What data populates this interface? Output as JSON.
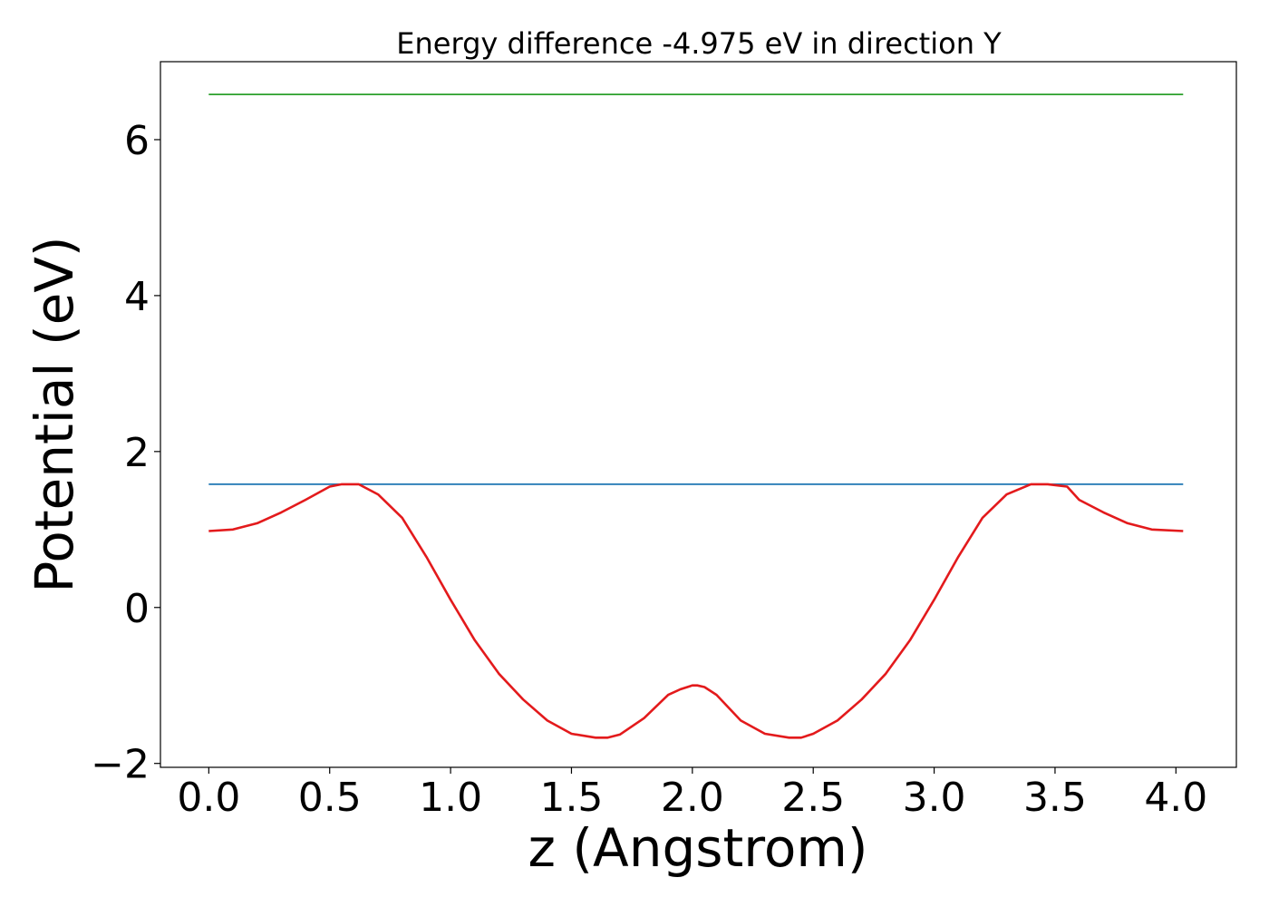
{
  "chart_data": {
    "type": "line",
    "title": "Energy difference -4.975 eV in direction Y",
    "xlabel": "z (Angstrom)",
    "ylabel": "Potential (eV)",
    "xlim": [
      -0.2,
      4.25
    ],
    "ylim": [
      -2.05,
      7.0
    ],
    "grid": false,
    "xticks": [
      0.0,
      0.5,
      1.0,
      1.5,
      2.0,
      2.5,
      3.0,
      3.5,
      4.0
    ],
    "xtick_labels": [
      "0.0",
      "0.5",
      "1.0",
      "1.5",
      "2.0",
      "2.5",
      "3.0",
      "3.5",
      "4.0"
    ],
    "yticks": [
      -2,
      0,
      2,
      4,
      6
    ],
    "ytick_labels": [
      "−2",
      "0",
      "2",
      "4",
      "6"
    ],
    "series": [
      {
        "color": "#2ca02c",
        "x": [
          0.0,
          4.03
        ],
        "y": [
          6.58,
          6.58
        ]
      },
      {
        "color": "#1f77b4",
        "x": [
          0.0,
          4.03
        ],
        "y": [
          1.58,
          1.58
        ]
      },
      {
        "color": "#e31a1c",
        "x": [
          0.0,
          0.1,
          0.2,
          0.3,
          0.4,
          0.5,
          0.55,
          0.62,
          0.7,
          0.8,
          0.9,
          1.0,
          1.1,
          1.2,
          1.3,
          1.4,
          1.5,
          1.6,
          1.65,
          1.7,
          1.8,
          1.9,
          1.95,
          2.0,
          2.02,
          2.05,
          2.1,
          2.2,
          2.3,
          2.4,
          2.45,
          2.5,
          2.6,
          2.7,
          2.8,
          2.9,
          3.0,
          3.1,
          3.2,
          3.3,
          3.4,
          3.47,
          3.55,
          3.6,
          3.7,
          3.8,
          3.9,
          4.03
        ],
        "y": [
          0.98,
          1.0,
          1.08,
          1.22,
          1.38,
          1.55,
          1.58,
          1.58,
          1.45,
          1.15,
          0.65,
          0.1,
          -0.42,
          -0.85,
          -1.18,
          -1.45,
          -1.62,
          -1.67,
          -1.67,
          -1.63,
          -1.42,
          -1.12,
          -1.05,
          -1.0,
          -1.0,
          -1.02,
          -1.12,
          -1.45,
          -1.62,
          -1.67,
          -1.67,
          -1.62,
          -1.45,
          -1.18,
          -0.85,
          -0.42,
          0.1,
          0.65,
          1.15,
          1.45,
          1.58,
          1.58,
          1.55,
          1.38,
          1.22,
          1.08,
          1.0,
          0.98
        ]
      }
    ]
  }
}
